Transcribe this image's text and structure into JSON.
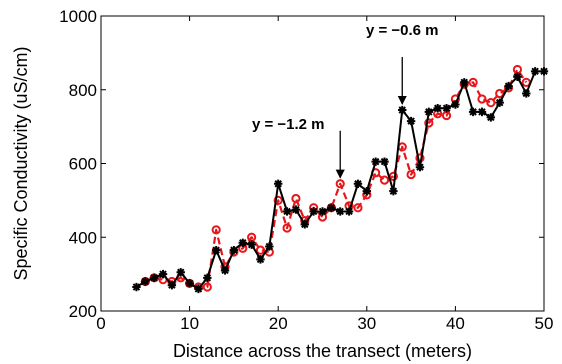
{
  "chart_data": {
    "type": "line",
    "title": "",
    "xlabel": "Distance across the transect (meters)",
    "ylabel": "Specific Conductivity (uS/cm)",
    "xlim": [
      0,
      50
    ],
    "ylim": [
      200,
      1000
    ],
    "xticks": [
      0,
      10,
      20,
      30,
      40,
      50
    ],
    "yticks": [
      200,
      400,
      600,
      800,
      1000
    ],
    "grid": false,
    "legend": "none",
    "colors": {
      "series_a": "#000000",
      "series_b": "#e8161b"
    },
    "series": [
      {
        "marker": "asterisk",
        "line": "solid",
        "x": [
          4,
          5,
          6,
          7,
          8,
          9,
          10,
          11,
          12,
          13,
          14,
          15,
          16,
          17,
          18,
          19,
          20,
          21,
          22,
          23,
          24,
          25,
          26,
          27,
          28,
          29,
          30,
          31,
          32,
          33,
          34,
          35,
          36,
          37,
          38,
          39,
          40,
          41,
          42,
          43,
          44,
          45,
          46,
          47,
          48,
          49,
          50
        ],
        "y": [
          265,
          280,
          290,
          300,
          270,
          305,
          275,
          260,
          290,
          365,
          310,
          365,
          385,
          380,
          340,
          375,
          545,
          470,
          475,
          435,
          470,
          470,
          480,
          470,
          470,
          545,
          525,
          605,
          605,
          525,
          745,
          715,
          590,
          740,
          750,
          750,
          760,
          820,
          740,
          740,
          725,
          765,
          810,
          835,
          790,
          850,
          850
        ]
      },
      {
        "marker": "circle",
        "line": "dashed",
        "x": [
          5,
          6,
          7,
          8,
          9,
          10,
          11,
          12,
          13,
          14,
          15,
          16,
          17,
          18,
          19,
          20,
          21,
          22,
          23,
          24,
          25,
          26,
          27,
          28,
          29,
          30,
          31,
          32,
          33,
          34,
          35,
          36,
          37,
          38,
          39,
          40,
          41,
          42,
          43,
          44,
          45,
          46,
          47,
          48
        ],
        "y": [
          280,
          290,
          285,
          280,
          290,
          275,
          265,
          265,
          420,
          320,
          360,
          370,
          400,
          365,
          360,
          500,
          425,
          505,
          445,
          480,
          455,
          480,
          545,
          485,
          480,
          515,
          575,
          555,
          565,
          645,
          570,
          615,
          710,
          735,
          730,
          775,
          815,
          820,
          775,
          765,
          790,
          805,
          855,
          820
        ]
      }
    ],
    "annotations": [
      {
        "text": "y = −1.2 m",
        "x": 27,
        "y": 545
      },
      {
        "text": "y = −0.6 m",
        "x": 34,
        "y": 745
      }
    ]
  }
}
